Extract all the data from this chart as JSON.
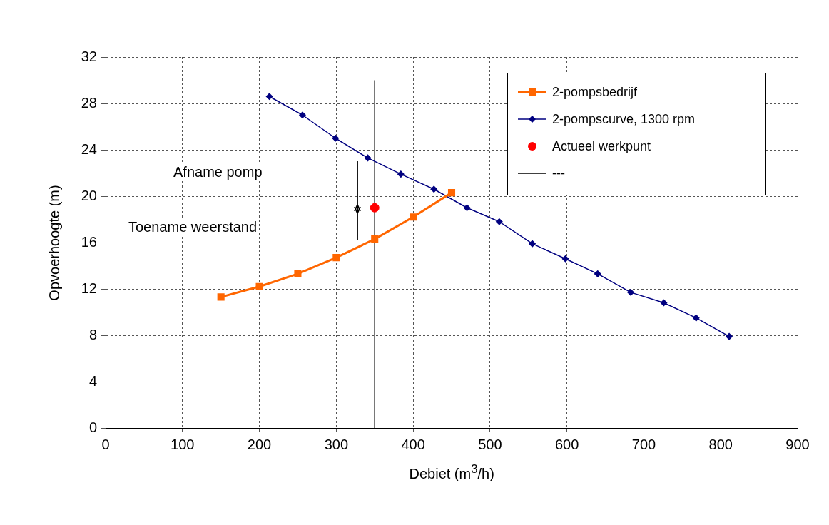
{
  "chart_data": {
    "type": "line",
    "xlabel": "Debiet (m$^{3}$/h)",
    "ylabel": "Opvoerhoogte (m)",
    "xlim": [
      0,
      900
    ],
    "xticks": [
      0,
      100,
      200,
      300,
      400,
      500,
      600,
      700,
      800,
      900
    ],
    "ylim": [
      0,
      32
    ],
    "yticks": [
      0,
      4,
      8,
      12,
      16,
      20,
      24,
      28,
      32
    ],
    "grid": true,
    "legend": "top right",
    "annotations": [
      "Afname pomp",
      "Toename weerstand"
    ],
    "series": [
      {
        "name": "2-pompsbedrijf",
        "color": "#ff6600",
        "marker": "square",
        "x": [
          150,
          200,
          250,
          300,
          350,
          400,
          450
        ],
        "values": [
          11.3,
          12.2,
          13.3,
          14.7,
          16.3,
          18.2,
          20.3
        ]
      },
      {
        "name": "2-pompscurve, 1300 rpm",
        "color": "#000080",
        "marker": "diamond",
        "x": [
          213,
          256,
          299,
          341,
          384,
          427,
          470,
          512,
          555,
          598,
          640,
          683,
          726,
          768,
          811
        ],
        "values": [
          28.6,
          27.0,
          25.0,
          23.3,
          21.9,
          20.6,
          19.0,
          17.8,
          15.9,
          14.6,
          13.3,
          11.7,
          10.8,
          9.5,
          7.9
        ]
      },
      {
        "name": "Actueel werkpunt",
        "type": "scatter",
        "color": "#ff0000",
        "marker": "circle",
        "x": [
          350
        ],
        "values": [
          19.0
        ]
      },
      {
        "name": "---",
        "color": "#000000",
        "marker": "none",
        "x": [
          350,
          350
        ],
        "values": [
          0,
          30
        ]
      }
    ]
  }
}
